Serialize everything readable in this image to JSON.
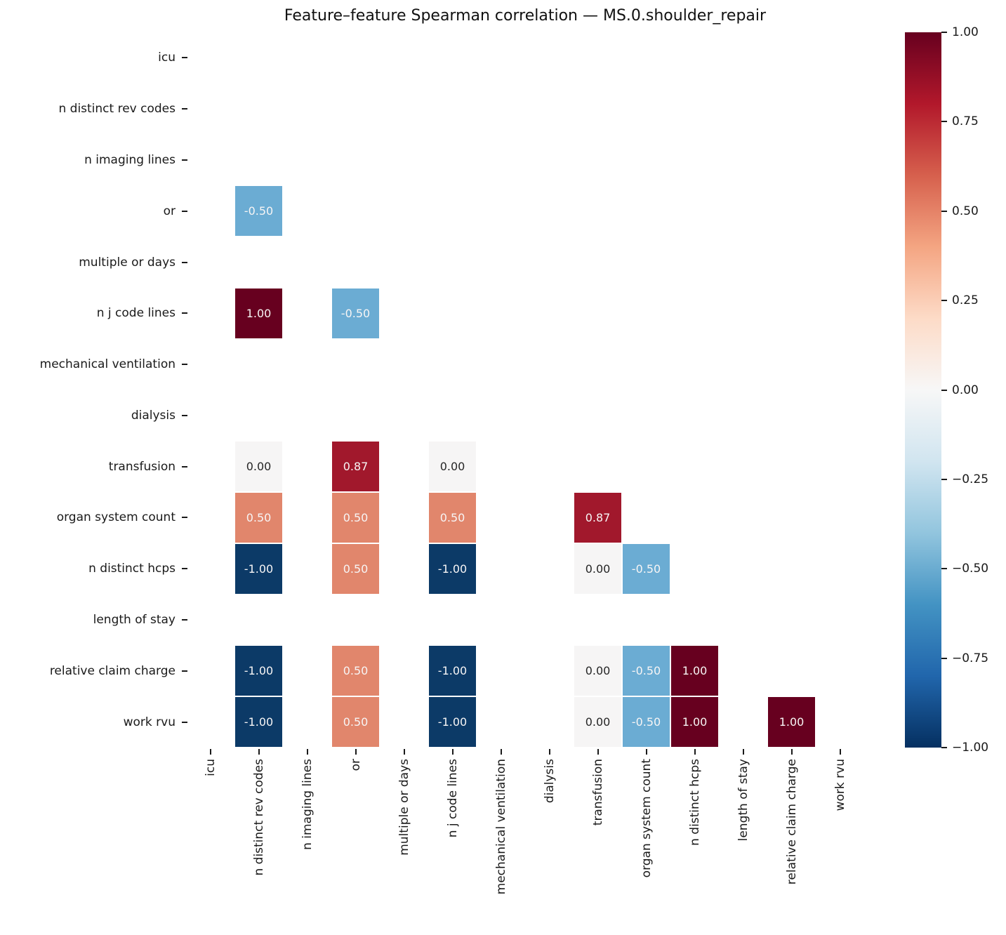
{
  "figure": {
    "background": "#ffffff"
  },
  "chart_data": {
    "type": "heatmap",
    "title": "Feature–feature Spearman correlation — MS.0.shoulder_repair",
    "features": [
      "icu",
      "n distinct rev codes",
      "n imaging lines",
      "or",
      "multiple or days",
      "n j code lines",
      "mechanical ventilation",
      "dialysis",
      "transfusion",
      "organ system count",
      "n distinct hcps",
      "length of stay",
      "relative claim charge",
      "work rvu"
    ],
    "x_categories": [
      "icu",
      "n distinct rev codes",
      "n imaging lines",
      "or",
      "multiple or days",
      "n j code lines",
      "mechanical ventilation",
      "dialysis",
      "transfusion",
      "organ system count",
      "n distinct hcps",
      "length of stay",
      "relative claim charge",
      "work rvu"
    ],
    "cells": [
      {
        "row": "or",
        "col": "n distinct rev codes",
        "value": -0.5
      },
      {
        "row": "n j code lines",
        "col": "n distinct rev codes",
        "value": 1.0
      },
      {
        "row": "n j code lines",
        "col": "or",
        "value": -0.5
      },
      {
        "row": "transfusion",
        "col": "n distinct rev codes",
        "value": 0.0
      },
      {
        "row": "transfusion",
        "col": "or",
        "value": 0.87
      },
      {
        "row": "transfusion",
        "col": "n j code lines",
        "value": 0.0
      },
      {
        "row": "organ system count",
        "col": "n distinct rev codes",
        "value": 0.5
      },
      {
        "row": "organ system count",
        "col": "or",
        "value": 0.5
      },
      {
        "row": "organ system count",
        "col": "n j code lines",
        "value": 0.5
      },
      {
        "row": "organ system count",
        "col": "transfusion",
        "value": 0.87
      },
      {
        "row": "n distinct hcps",
        "col": "n distinct rev codes",
        "value": -1.0
      },
      {
        "row": "n distinct hcps",
        "col": "or",
        "value": 0.5
      },
      {
        "row": "n distinct hcps",
        "col": "n j code lines",
        "value": -1.0
      },
      {
        "row": "n distinct hcps",
        "col": "transfusion",
        "value": 0.0
      },
      {
        "row": "n distinct hcps",
        "col": "organ system count",
        "value": -0.5
      },
      {
        "row": "relative claim charge",
        "col": "n distinct rev codes",
        "value": -1.0
      },
      {
        "row": "relative claim charge",
        "col": "or",
        "value": 0.5
      },
      {
        "row": "relative claim charge",
        "col": "n j code lines",
        "value": -1.0
      },
      {
        "row": "relative claim charge",
        "col": "transfusion",
        "value": 0.0
      },
      {
        "row": "relative claim charge",
        "col": "organ system count",
        "value": -0.5
      },
      {
        "row": "relative claim charge",
        "col": "n distinct hcps",
        "value": 1.0
      },
      {
        "row": "work rvu",
        "col": "n distinct rev codes",
        "value": -1.0
      },
      {
        "row": "work rvu",
        "col": "or",
        "value": 0.5
      },
      {
        "row": "work rvu",
        "col": "n j code lines",
        "value": -1.0
      },
      {
        "row": "work rvu",
        "col": "transfusion",
        "value": 0.0
      },
      {
        "row": "work rvu",
        "col": "organ system count",
        "value": -0.5
      },
      {
        "row": "work rvu",
        "col": "n distinct hcps",
        "value": 1.0
      },
      {
        "row": "work rvu",
        "col": "relative claim charge",
        "value": 1.0
      }
    ],
    "annotation_format": "two-decimal",
    "value_colors": {
      "-1.00": "#0c3a67",
      "-0.50": "#6bacd3",
      "0.00": "#f6f5f5",
      "0.50": "#e1866c",
      "0.87": "#a1182c",
      "1.00": "#67001f"
    },
    "annotation_text_colors": {
      "dark": "#262626",
      "light": "#f7f5f5"
    },
    "colorbar": {
      "min": -1.0,
      "max": 1.0,
      "tick_labels": [
        "1.00",
        "0.75",
        "0.50",
        "0.25",
        "0.00",
        "−0.25",
        "−0.50",
        "−0.75",
        "−1.00"
      ],
      "gradient_stops_top_to_bottom": [
        "#67001f",
        "#b2182b",
        "#d6604d",
        "#f4a582",
        "#fddbc7",
        "#f7f7f7",
        "#d1e5f0",
        "#92c5de",
        "#4393c3",
        "#2166ac",
        "#053061"
      ],
      "position": "right"
    },
    "grid": false,
    "cell_divider_color": "#ffffff"
  }
}
